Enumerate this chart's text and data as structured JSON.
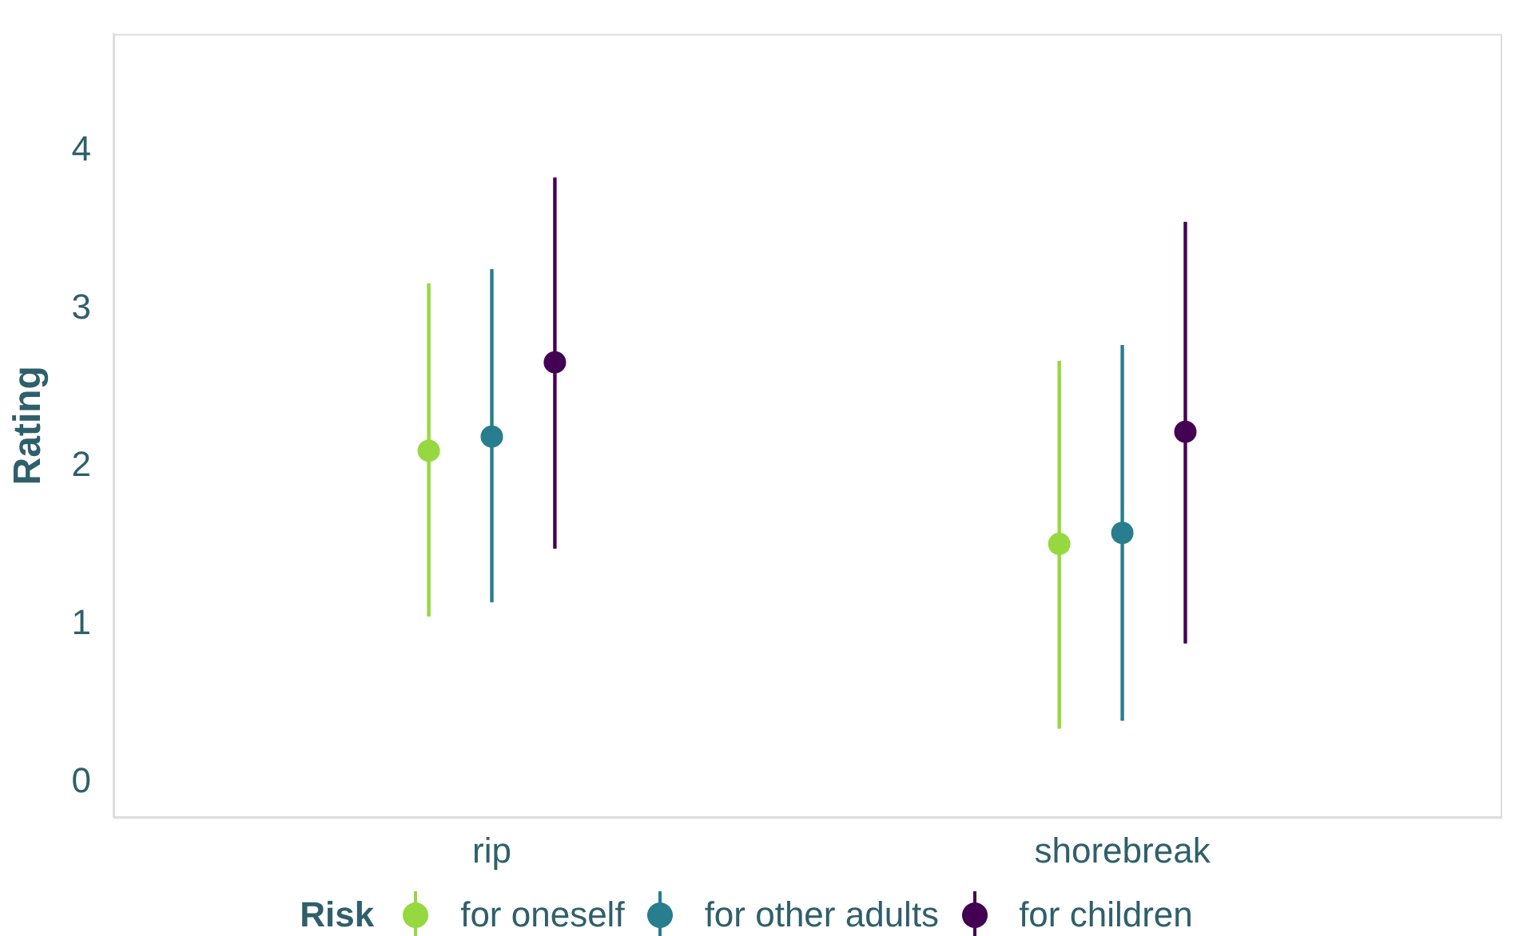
{
  "chart_data": {
    "type": "scatter",
    "ylabel": "Rating",
    "legend_title": "Risk",
    "categories": [
      "rip",
      "shorebreak"
    ],
    "ylim": [
      -0.22,
      4.74
    ],
    "yticks": [
      0,
      1,
      2,
      3,
      4
    ],
    "grid": false,
    "legend": "bottom",
    "marker": "circle",
    "series": [
      {
        "name": "for oneself",
        "color": "#95d840",
        "values": [
          2.1,
          1.51
        ],
        "errors": [
          [
            1.05,
            3.16
          ],
          [
            0.34,
            2.67
          ]
        ]
      },
      {
        "name": "for other adults",
        "color": "#287d8e",
        "values": [
          2.19,
          1.58
        ],
        "errors": [
          [
            1.14,
            3.25
          ],
          [
            0.39,
            2.77
          ]
        ]
      },
      {
        "name": "for children",
        "color": "#440154",
        "values": [
          2.66,
          2.22
        ],
        "errors": [
          [
            1.48,
            3.83
          ],
          [
            0.88,
            3.55
          ]
        ]
      }
    ]
  }
}
